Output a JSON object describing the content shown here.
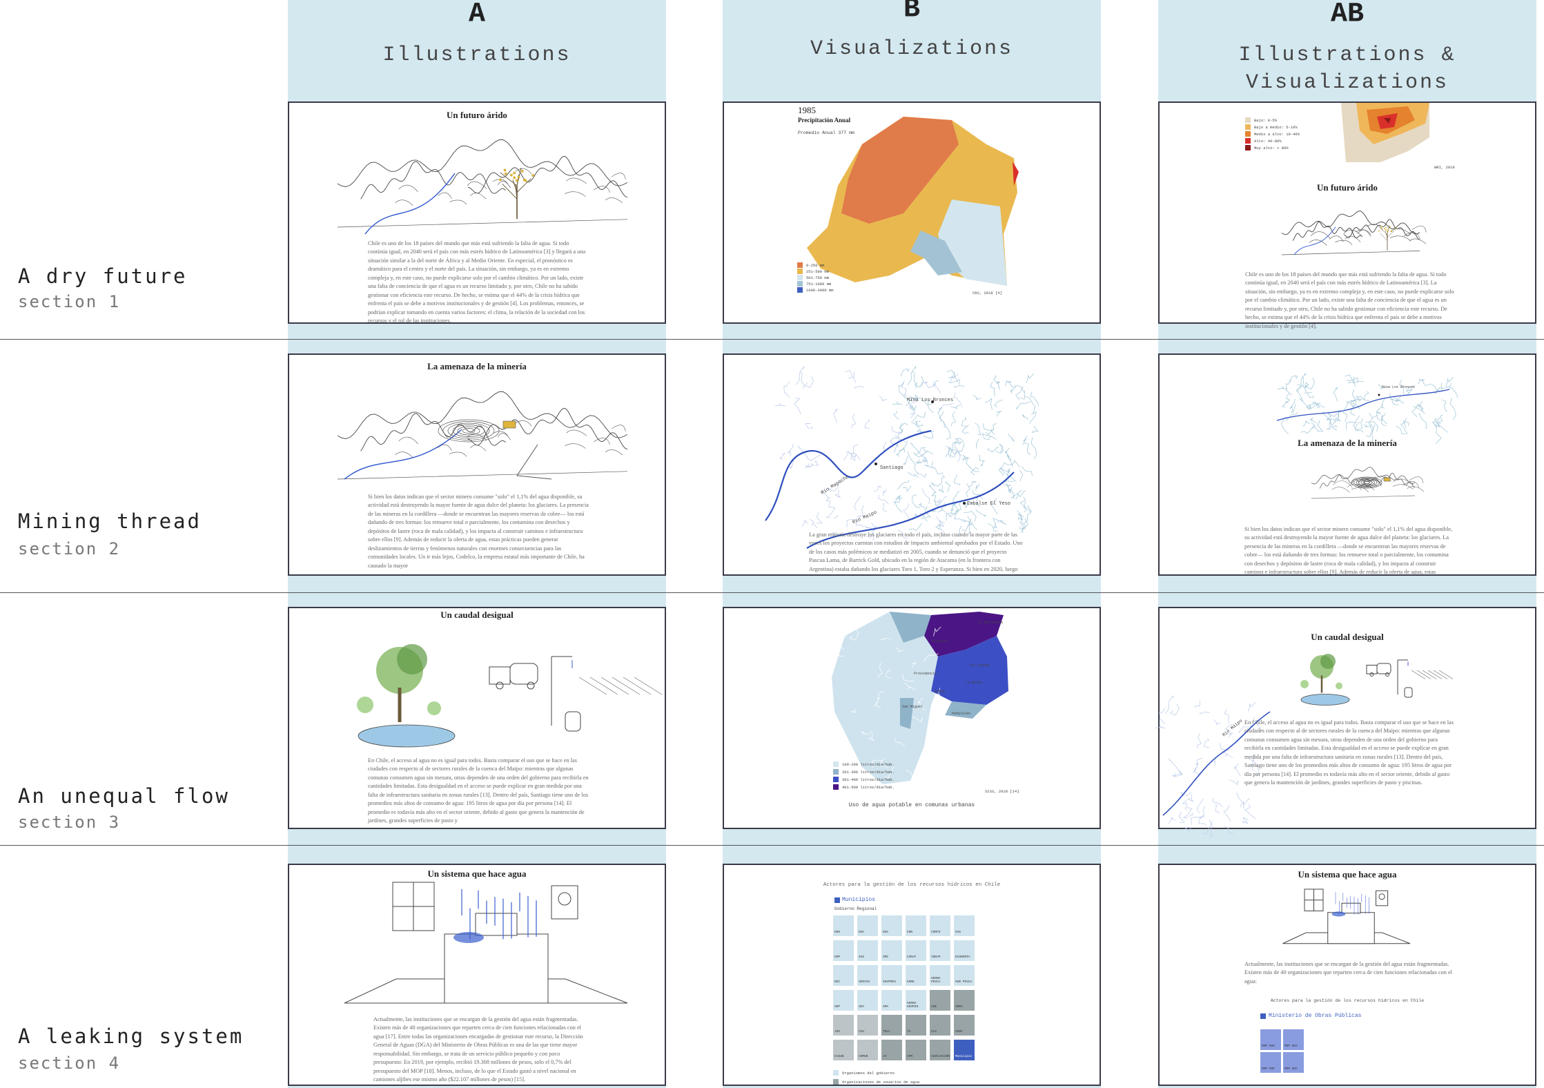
{
  "columns": [
    {
      "letter": "A",
      "name": [
        "Illustrations"
      ]
    },
    {
      "letter": "B",
      "name": [
        "Visualizations"
      ]
    },
    {
      "letter": "AB",
      "name": [
        "Illustrations &",
        "Visualizations"
      ]
    }
  ],
  "rows": [
    {
      "title": "A dry future",
      "section": "section 1"
    },
    {
      "title": "Mining thread",
      "section": "section 2"
    },
    {
      "title": "An unequal flow",
      "section": "section 3"
    },
    {
      "title": "A leaking system",
      "section": "section 4"
    }
  ],
  "panels": [
    [
      {
        "title": "Un futuro árido",
        "body": "Chile es uno de los 18 países del mundo que más está sufriendo la falta de agua. Si todo continúa igual, en 2040 será el país con más estrés hídrico de Latinoamérica [3] y llegará a una situación similar a la del norte de África y al Medio Oriente. En especial, el pronóstico es dramático para el centro y el norte del país. La situación, sin embargo, ya es en extremo compleja y, en este caso, no puede explicarse solo por el cambio climático. Por un lado, existe una falta de conciencia de que el agua es un recurso limitado y, por otro, Chile no ha sabido gestionar con eficiencia este recurso. De hecho, se estima que el 44% de la crisis hídrica que enfrenta el país se debe a motivos institucionales y de gestión [4]. Los problemas, entonces, se podrían explicar tomando en cuenta varios factores: el clima, la relación de la sociedad con los recursos y el rol de las instituciones."
      },
      {
        "labels": [
          "1985",
          "Precipitación Anual",
          "Promedio Anual 377 mm"
        ],
        "legend": [
          {
            "label": "0-250 mm",
            "color": "#e07b4a"
          },
          {
            "label": "251-500 mm",
            "color": "#e9b84f"
          },
          {
            "label": "501-750 mm",
            "color": "#d3e6ef"
          },
          {
            "label": "751-1000 mm",
            "color": "#a3c3d4"
          },
          {
            "label": "1000-3000 mm",
            "color": "#3d5fbf"
          }
        ],
        "note": "CR2, 2018 [4]"
      },
      {
        "legend": [
          {
            "label": "Bajo: 0-5%",
            "color": "#e6d9c3"
          },
          {
            "label": "Bajo a medio: 5-10%",
            "color": "#efb75a"
          },
          {
            "label": "Medio a alto: 10-40%",
            "color": "#e5822e"
          },
          {
            "label": "Alto: 40-80%",
            "color": "#d9302a"
          },
          {
            "label": "Muy alto: > 80%",
            "color": "#8b1a1a"
          }
        ],
        "note": "WRI, 2019",
        "title": "Un futuro árido",
        "body": "Chile es uno de los 18 países del mundo que más está sufriendo la falta de agua. Si todo continúa igual, en 2040 será el país con más estrés hídrico de Latinoamérica [3]. La situación, sin embargo, ya es en extremo compleja y, en este caso, no puede explicarse solo por el cambio climático. Por un lado, existe una falta de conciencia de que el agua es un recurso limitado y, por otro, Chile no ha sabido gestionar con eficiencia este recurso. De hecho, se estima que el 44% de la crisis hídrica que enfrenta el país se debe a motivos institucionales y de gestión [4]."
      }
    ],
    [
      {
        "title": "La amenaza de la minería",
        "body": "Si bien los datos indican que el sector minero consume \"solo\" el 1,1% del agua disponible, su actividad está destruyendo la mayor fuente de agua dulce del planeta: los glaciares. La presencia de las mineras en la cordillera —donde se encuentran las mayores reservas de cobre— los está dañando de tres formas: los remueve total o parcialmente, los contamina con desechos y depósitos de lastre (roca de mala calidad), y los impacta al construir caminos e infraestructura sobre ellos [9]. Además de reducir la oferta de agua, estas prácticas pueden generar deslizamientos de tierras y fenómenos naturales con enormes consecuencias para las comunidades locales. Un ir más lejos, Codelco, la empresa estatal más importante de Chile, ha causado la mayor"
      },
      {
        "labels": [
          "Mina Los Bronces",
          "Santiago",
          "Río Mapocho",
          "Río Maipo",
          "Embalse El Yeso"
        ],
        "body": "La gran minería destruye los glaciares en todo el país, incluso cuando la mayor parte de las veces los proyectos cuentan con estudios de impacto ambiental aprobados por el Estado. Uno de los casos más polémicos se mediatizó en 2005, cuando se denunció que el proyecto Pascua Lama, de Barrick Gold, ubicado en la región de Atacama (en la frontera con Argentina) estaba dañando los glaciares Toro 1, Toro 2 y Esperanza. Si bien en 2020, luego"
      },
      {
        "labels": [
          "Mina Los Bronces"
        ],
        "title": "La amenaza de la minería",
        "body": "Si bien los datos indican que el sector minero consume \"solo\" el 1,1% del agua disponible, su actividad está destruyendo la mayor fuente de agua dulce del planeta: los glaciares. La presencia de las mineras en la cordillera —donde se encuentran las mayores reservas de cobre— los está dañando de tres formas: los remueve total o parcialmente, los contamina con desechos y depósitos de lastre (roca de mala calidad), y los impacta al construir caminos e infraestructura sobre ellos [9]. Además de reducir la oferta de agua, estas"
      }
    ],
    [
      {
        "title": "Un caudal desigual",
        "body": "En Chile, el acceso al agua no es igual para todos. Basta comparar el uso que se hace en las ciudades con respecto al de sectores rurales de la cuenca del Maipo: mientras que algunas comunas consumen agua sin mesura, otras dependen de una orden del gobierno para recibirla en cantidades limitadas. Esta desigualdad en el acceso se puede explicar en gran medida por una falta de infraestructura sanitaria en zonas rurales [13]. Dentro del país, Santiago tiene uno de los promedios más altos de consumo de agua: 195 litros de agua por día por persona [14]. El promedio es todavía más alto en el sector oriente, debido al gasto que genera la mantención de jardines, grandes superficies de pasto y"
      },
      {
        "labels": [
          "Lo Barnechea",
          "Vitacura",
          "Las Condes",
          "Providencia",
          "Ñuñoa",
          "La Reina",
          "Peñalolén",
          "San Miguel"
        ],
        "legend": [
          {
            "label": "100-200 litros/día/hab.",
            "color": "#d3e6ef"
          },
          {
            "label": "201-300 litros/día/hab.",
            "color": "#8fb3c9"
          },
          {
            "label": "301-400 litros/día/hab.",
            "color": "#3d4fc4"
          },
          {
            "label": "401-500 litros/día/hab.",
            "color": "#4b1585"
          }
        ],
        "caption": "Uso de agua potable en comunas urbanas",
        "note": "SISS, 2018 [14]"
      },
      {
        "title": "Un caudal desigual",
        "labels": [
          "Río Maipo"
        ],
        "body": "En Chile, el acceso al agua no es igual para todos. Basta comparar el uso que se hace en las ciudades con respecto al de sectores rurales de la cuenca del Maipo: mientras que algunas comunas consumen agua sin mesura, otras dependen de una orden del gobierno para recibirla en cantidades limitadas. Esta desigualdad en el acceso se puede explicar en gran medida por una falta de infraestructura sanitaria en zonas rurales [13]. Dentro del país, Santiago tiene uno de los promedios más altos de consumo de agua: 195 litros de agua por día por persona [14]. El promedio es todavía más alto en el sector oriente, debido al gasto que genera la mantención de jardines, grandes superficies de pasto y piscinas."
      }
    ],
    [
      {
        "title": "Un sistema que hace agua",
        "body": "Actualmente, las instituciones que se encargan de la gestión del agua están fragmentadas. Existen más de 40 organizaciones que reparten cerca de cien funciones relacionadas con el agua [17]. Entre todas las organizaciones encargadas de gestionar este recurso, la Dirección General de Aguas (DGA) del Ministerio de Obras Públicas es una de las que tiene mayor responsabilidad. Sin embargo, se trata de un servicio público pequeño y con poco presupuesto: En 2019, por ejemplo, recibió 19.308 millones de pesos, solo el 0,7% del presupuesto del MOP [18]. Menos, incluso, de lo que el Estado gastó a nivel nacional en camiones aljibes ese mismo año ($22.107 millones de pesos) [15]."
      },
      {
        "title": "Actores para la gestión de los recursos hídricos en Chile",
        "labels": [
          "Municipios",
          "Gobierno Regional"
        ],
        "boxes": [
          {
            "label": "DOH",
            "color": "#cfe3ee"
          },
          {
            "label": "DGA",
            "color": "#cfe3ee"
          },
          {
            "label": "DGC",
            "color": "#cfe3ee"
          },
          {
            "label": "CNR",
            "color": "#cfe3ee"
          },
          {
            "label": "CORFO",
            "color": "#cfe3ee"
          },
          {
            "label": "SAG",
            "color": "#cfe3ee"
          },
          {
            "label": "DOP",
            "color": "#cfe3ee"
          },
          {
            "label": "SSS",
            "color": "#cfe3ee"
          },
          {
            "label": "SMC",
            "color": "#cfe3ee"
          },
          {
            "label": "CONAF",
            "color": "#cfe3ee"
          },
          {
            "label": "INDAP",
            "color": "#cfe3ee"
          },
          {
            "label": "ECONOMÍA",
            "color": "#cfe3ee"
          },
          {
            "label": "DEC",
            "color": "#cfe3ee"
          },
          {
            "label": "SERVIU",
            "color": "#cfe3ee"
          },
          {
            "label": "SEGPRES",
            "color": "#cfe3ee"
          },
          {
            "label": "GORE",
            "color": "#cfe3ee"
          },
          {
            "label": "SERNA PESCA",
            "color": "#cfe3ee"
          },
          {
            "label": "SUB PESCA",
            "color": "#cfe3ee"
          },
          {
            "label": "SEP",
            "color": "#cfe3ee"
          },
          {
            "label": "SEA",
            "color": "#cfe3ee"
          },
          {
            "label": "SMA",
            "color": "#cfe3ee"
          },
          {
            "label": "SERNA GEOMIN",
            "color": "#cfe3ee"
          },
          {
            "label": "CDE",
            "color": "#98a4a6"
          },
          {
            "label": "CBRs",
            "color": "#98a4a6"
          },
          {
            "label": "JdV",
            "color": "#bcc4c7"
          },
          {
            "label": "CCU",
            "color": "#bcc4c7"
          },
          {
            "label": "TDLC",
            "color": "#98a4a6"
          },
          {
            "label": "TA",
            "color": "#98a4a6"
          },
          {
            "label": "CAs",
            "color": "#98a4a6"
          },
          {
            "label": "ASOC",
            "color": "#98a4a6"
          },
          {
            "label": "CASUB",
            "color": "#bcc4c7"
          },
          {
            "label": "COMUN",
            "color": "#bcc4c7"
          },
          {
            "label": "JV",
            "color": "#98a4a6"
          },
          {
            "label": "APR",
            "color": "#98a4a6"
          },
          {
            "label": "ASOCIACIÓN",
            "color": "#98a4a6"
          },
          {
            "label": "Municipio",
            "color": "#3d5fbf"
          }
        ],
        "legend": [
          {
            "label": "Organismos del gobierno",
            "color": "#cfe3ee"
          },
          {
            "label": "Organizaciones de usuarios de agua",
            "color": "#98a4a6"
          }
        ]
      },
      {
        "title": "Un sistema que hace agua",
        "body": "Actualmente, las instituciones que se encargan de la gestión del agua están fragmentadas. Existen más de 40 organizaciones que reparten cerca de cien funciones relacionadas con el agua:",
        "labels": [
          "Actores para la gestión de los recursos hídricos en Chile",
          "Ministerio de Obras Públicas"
        ],
        "boxes": [
          {
            "label": "MOP DOH",
            "color": "#8a9ce0"
          },
          {
            "label": "MOP DGA",
            "color": "#8a9ce0"
          },
          {
            "label": "MOP DOP",
            "color": "#8a9ce0"
          },
          {
            "label": "MOP DGC",
            "color": "#8a9ce0"
          }
        ]
      }
    ]
  ]
}
